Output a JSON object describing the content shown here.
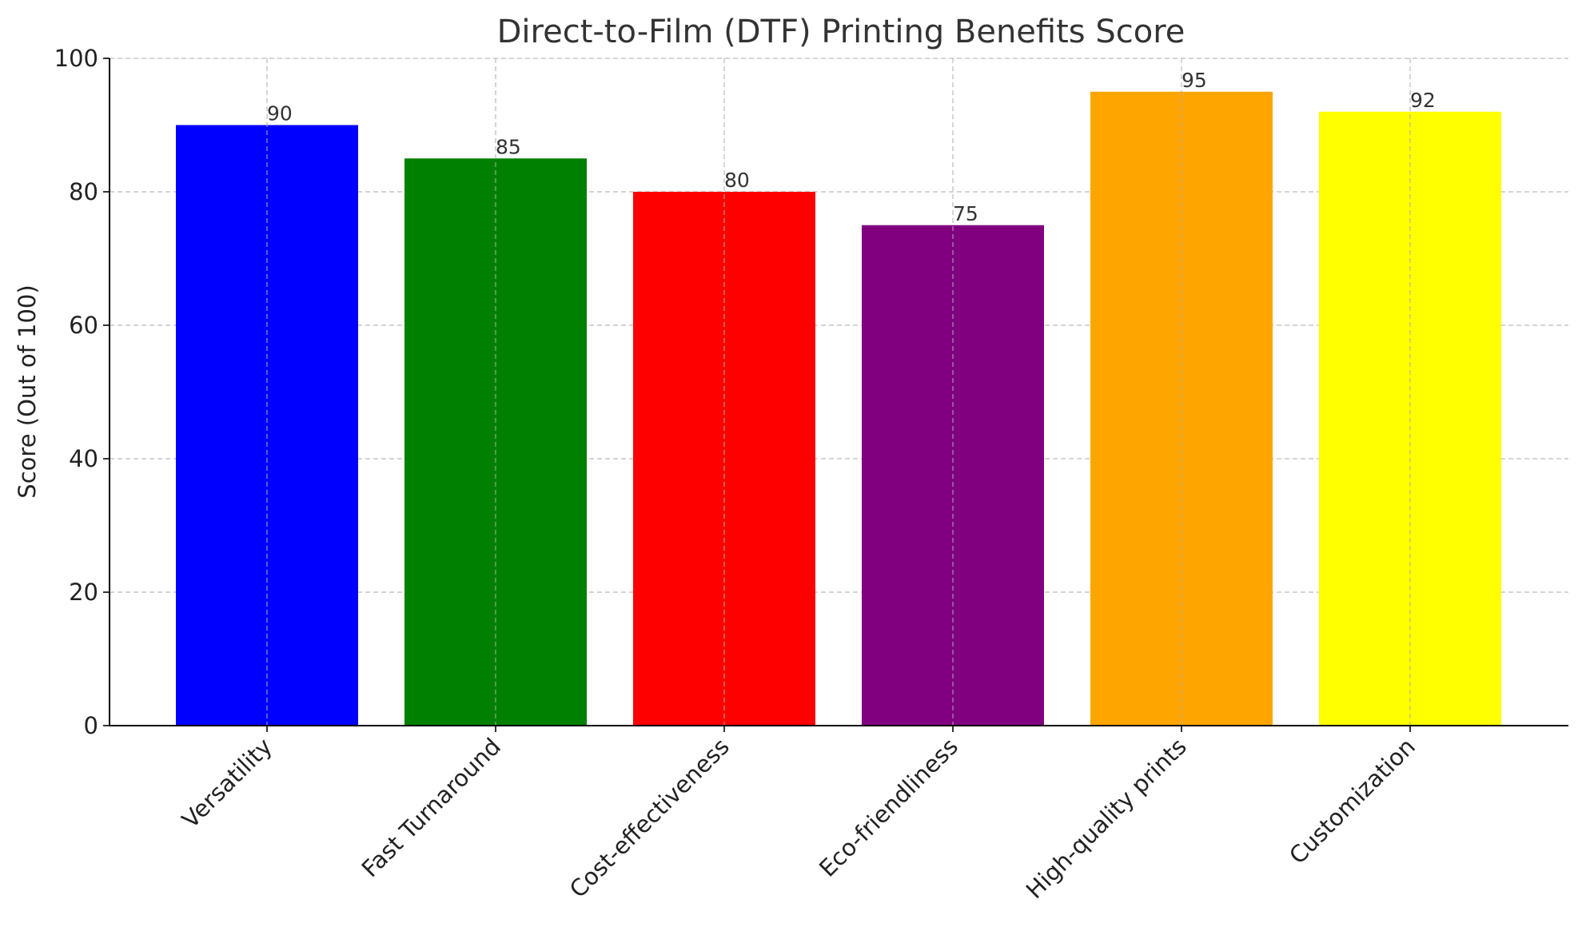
{
  "chart_data": {
    "type": "bar",
    "title": "Direct-to-Film (DTF) Printing Benefits Score",
    "xlabel": "",
    "ylabel": "Score (Out of 100)",
    "categories": [
      "Versatility",
      "Fast Turnaround",
      "Cost-effectiveness",
      "Eco-friendliness",
      "High-quality prints",
      "Customization"
    ],
    "values": [
      90,
      85,
      80,
      75,
      95,
      92
    ],
    "data_labels": [
      "90",
      "85",
      "80",
      "75",
      "95",
      "92"
    ],
    "colors": [
      "#0000ff",
      "#008000",
      "#ff0000",
      "#800080",
      "#ffa500",
      "#ffff00"
    ],
    "ylim": [
      0,
      100
    ],
    "yticks": [
      0,
      20,
      40,
      60,
      80,
      100
    ],
    "ytick_labels": [
      "0",
      "20",
      "40",
      "60",
      "80",
      "100"
    ],
    "grid": true,
    "legend": "none"
  }
}
